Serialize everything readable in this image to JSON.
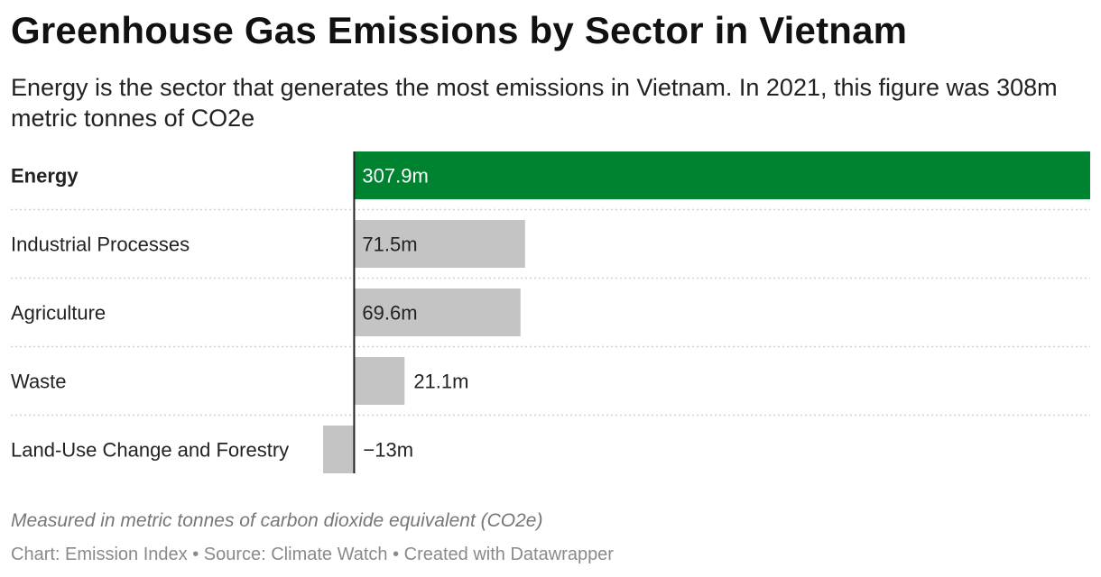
{
  "header": {
    "title": "Greenhouse Gas Emissions by Sector in Vietnam",
    "subtitle": "Energy is the sector that generates the most emissions in Vietnam. In 2021, this figure was 308m metric tonnes of CO2e"
  },
  "footer": {
    "notes": "Measured in metric tonnes of carbon dioxide equivalent (CO2e)",
    "byline": "Chart: Emission Index • Source: Climate Watch • Created with Datawrapper"
  },
  "colors": {
    "highlight": "#008330",
    "default": "#c4c4c4",
    "axis": "#222222",
    "separator": "#d0d0d0"
  },
  "chart_data": {
    "type": "bar",
    "orientation": "horizontal",
    "categories": [
      "Energy",
      "Industrial Processes",
      "Agriculture",
      "Waste",
      "Land-Use Change and Forestry"
    ],
    "values": [
      307.9,
      71.5,
      69.6,
      21.1,
      -13
    ],
    "value_labels": [
      "307.9m",
      "71.5m",
      "69.6m",
      "21.1m",
      "−13m"
    ],
    "highlighted": [
      "Energy"
    ],
    "xlim": [
      -13,
      307.9
    ],
    "grid": false
  }
}
